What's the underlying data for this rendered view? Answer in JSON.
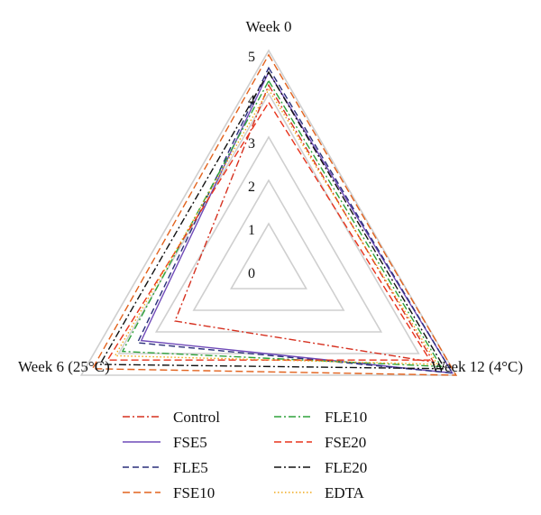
{
  "chart_data": {
    "type": "radar",
    "axes": [
      "Week 0",
      "Week 12 (4°C)",
      "Week 6 (25°C)"
    ],
    "rlim": [
      0,
      5
    ],
    "ticks": [
      "0",
      "1",
      "2",
      "3",
      "4",
      "5"
    ],
    "grid": true,
    "legend_position": "bottom",
    "series": [
      {
        "name": "Control",
        "values": [
          4.2,
          4.4,
          2.5
        ],
        "color": "#d6301f",
        "dash": "8,3,2,3"
      },
      {
        "name": "FSE5",
        "values": [
          4.5,
          4.9,
          3.4
        ],
        "color": "#6f4ab8",
        "dash": ""
      },
      {
        "name": "FLE5",
        "values": [
          4.6,
          4.9,
          3.5
        ],
        "color": "#2a2f7a",
        "dash": "7,4"
      },
      {
        "name": "FSE10",
        "values": [
          4.9,
          5.0,
          4.7
        ],
        "color": "#e2621d",
        "dash": "8,4"
      },
      {
        "name": "FLE10",
        "values": [
          4.3,
          4.6,
          3.9
        ],
        "color": "#2ea23a",
        "dash": "8,3,2,3"
      },
      {
        "name": "FSE20",
        "values": [
          3.8,
          4.3,
          4.3
        ],
        "color": "#e8331c",
        "dash": "8,4"
      },
      {
        "name": "FLE20",
        "values": [
          4.5,
          4.7,
          4.5
        ],
        "color": "#111111",
        "dash": "8,3,2,3"
      },
      {
        "name": "EDTA",
        "values": [
          4.1,
          4.5,
          4.1
        ],
        "color": "#f0a818",
        "dash": "1.5,2.5"
      }
    ]
  }
}
